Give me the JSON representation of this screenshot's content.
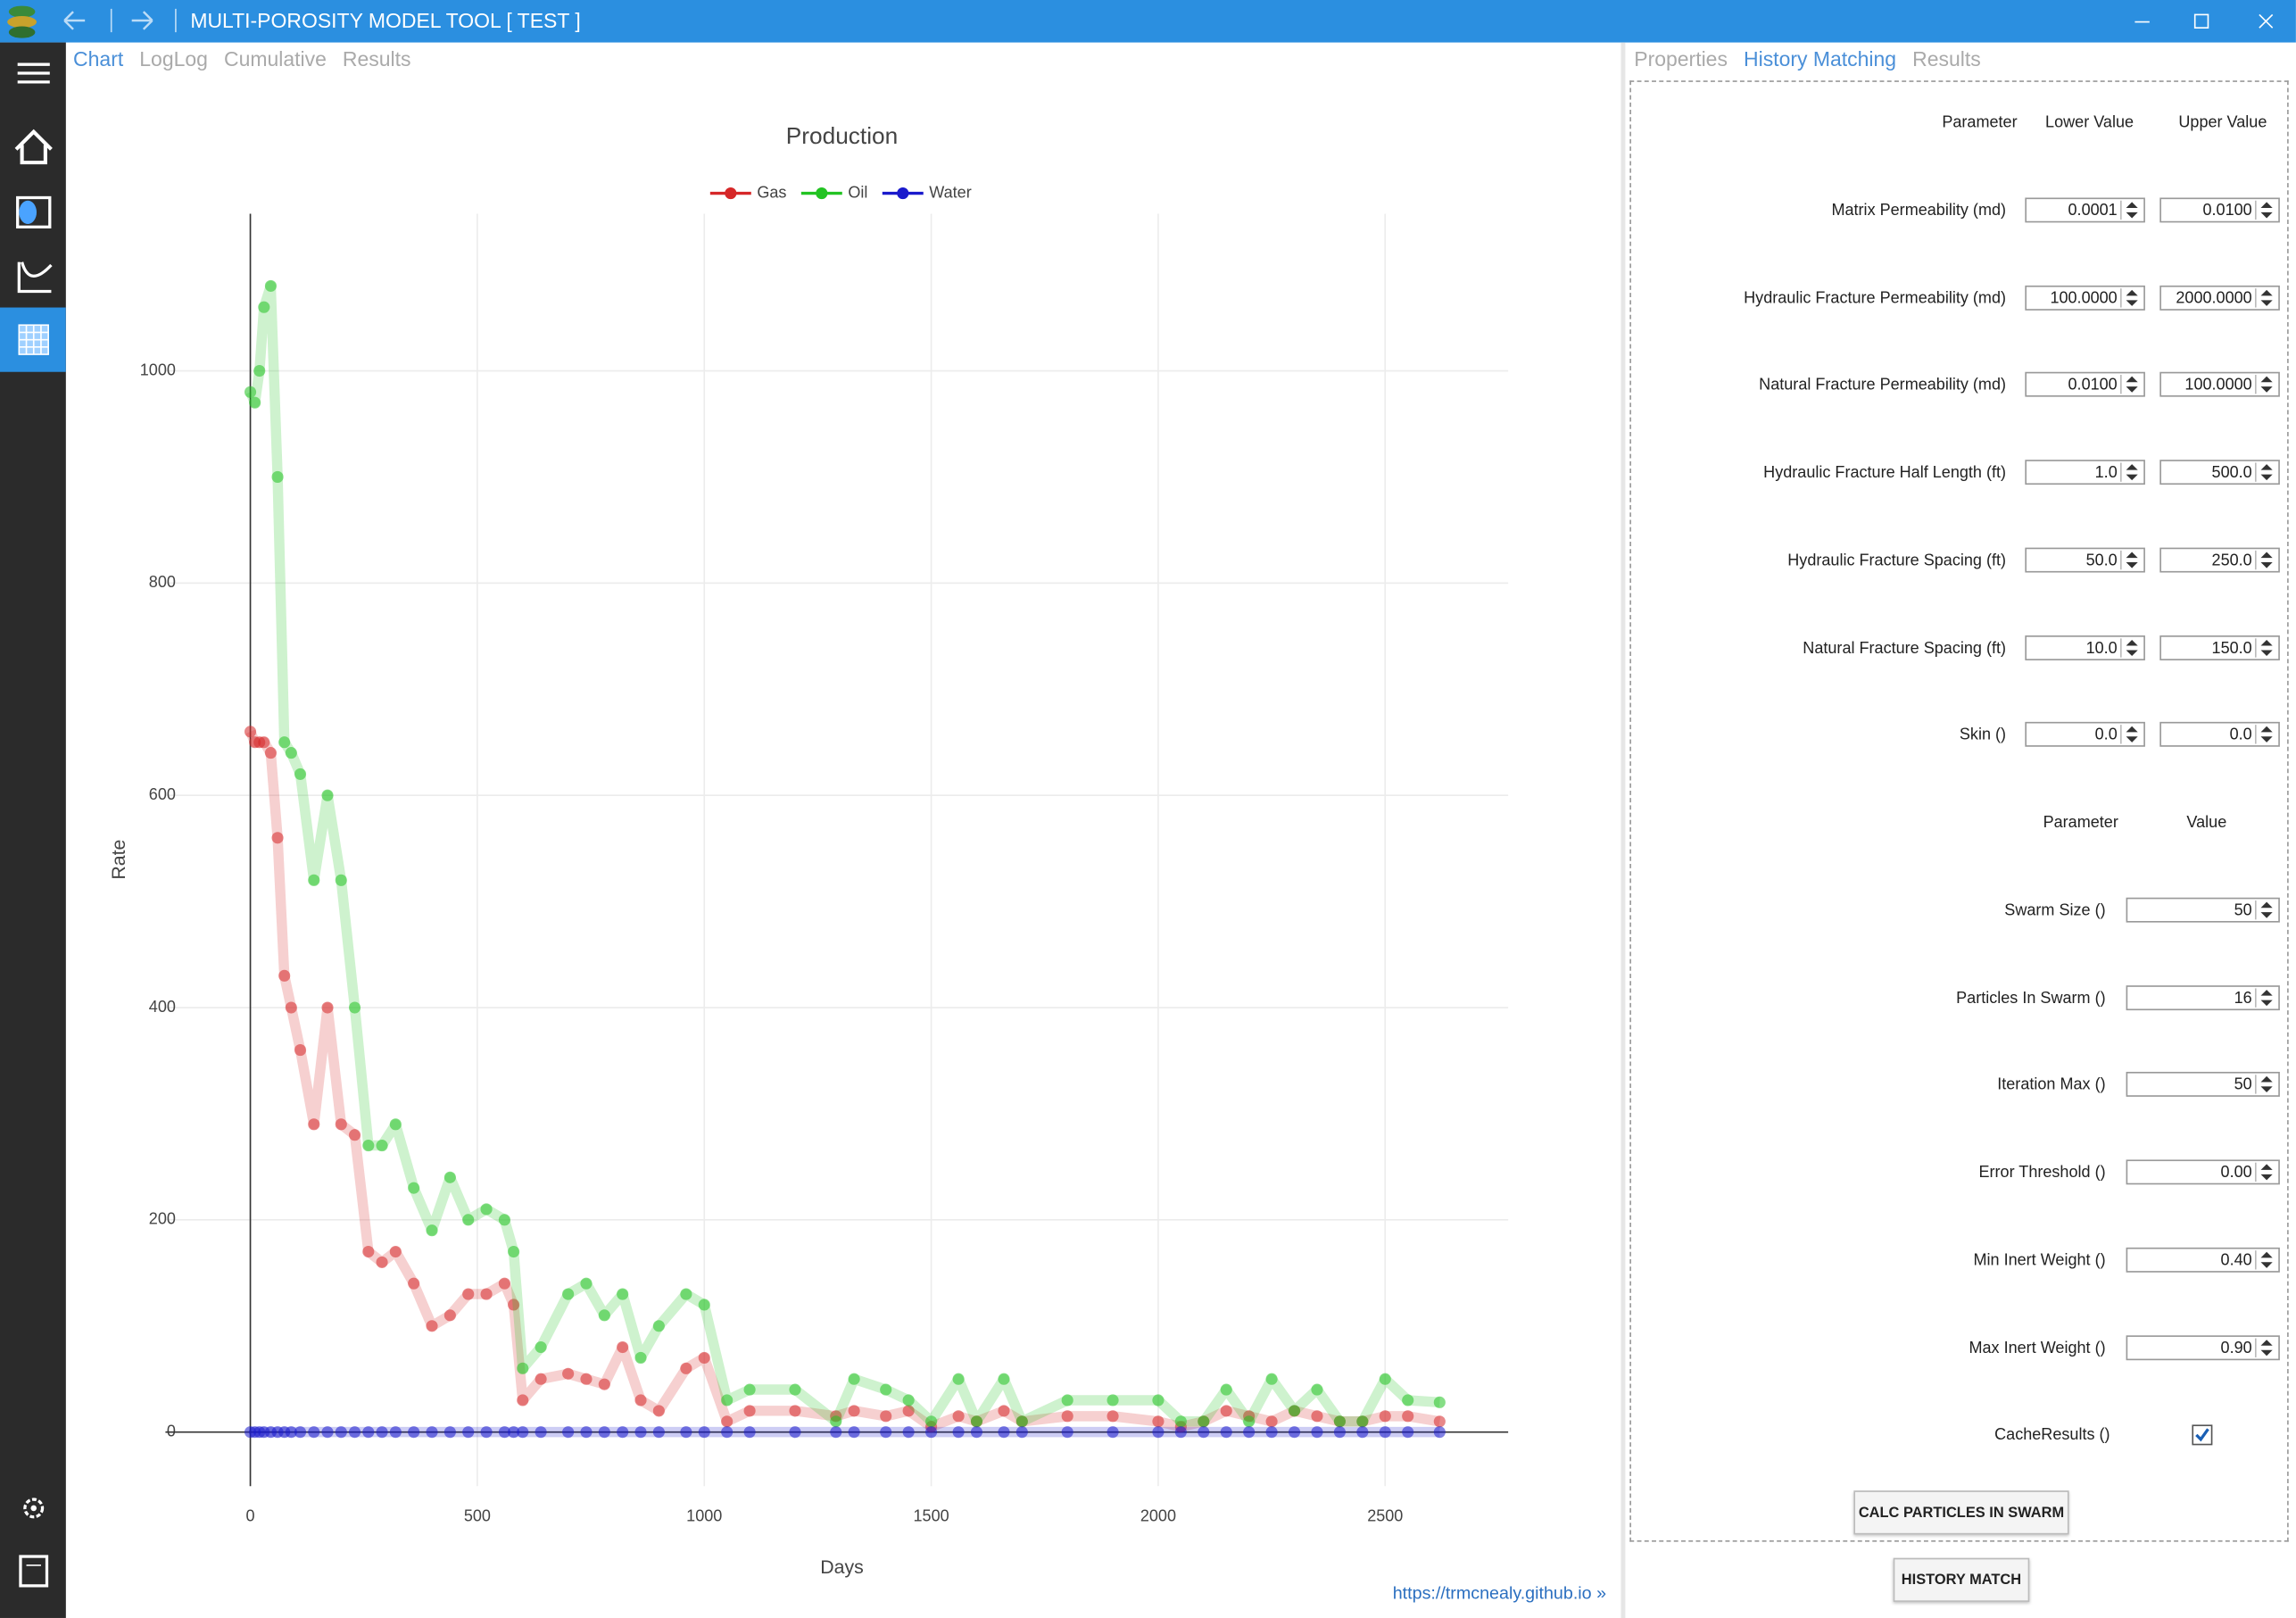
{
  "window": {
    "title": "MULTI-POROSITY MODEL TOOL [ TEST ]"
  },
  "chart_tabs": {
    "items": [
      "Chart",
      "LogLog",
      "Cumulative",
      "Results"
    ],
    "active": 0
  },
  "chart_data": {
    "type": "scatter",
    "title": "Production",
    "x_label": "Days",
    "y_label": "Rate",
    "x": [
      0,
      10,
      20,
      30,
      45,
      60,
      75,
      90,
      110,
      140,
      170,
      200,
      230,
      260,
      290,
      320,
      360,
      400,
      440,
      480,
      520,
      560,
      580,
      600,
      640,
      700,
      740,
      780,
      820,
      860,
      900,
      960,
      1000,
      1050,
      1100,
      1200,
      1290,
      1330,
      1400,
      1450,
      1500,
      1560,
      1600,
      1660,
      1700,
      1800,
      1900,
      2000,
      2050,
      2100,
      2150,
      2200,
      2250,
      2300,
      2350,
      2400,
      2450,
      2500,
      2550,
      2620
    ],
    "series": [
      {
        "name": "Gas",
        "color": "#d62728",
        "values": [
          660,
          650,
          650,
          650,
          640,
          560,
          430,
          400,
          360,
          290,
          400,
          290,
          280,
          170,
          160,
          170,
          140,
          100,
          110,
          130,
          130,
          140,
          120,
          30,
          50,
          55,
          50,
          45,
          80,
          30,
          20,
          60,
          70,
          10,
          20,
          20,
          15,
          20,
          15,
          20,
          5,
          15,
          10,
          20,
          10,
          15,
          15,
          10,
          5,
          10,
          20,
          15,
          10,
          20,
          15,
          10,
          10,
          15,
          15,
          10
        ]
      },
      {
        "name": "Oil",
        "color": "#22c322",
        "values": [
          980,
          970,
          1000,
          1060,
          1080,
          900,
          650,
          640,
          620,
          520,
          600,
          520,
          400,
          270,
          270,
          290,
          230,
          190,
          240,
          200,
          210,
          200,
          170,
          60,
          80,
          130,
          140,
          110,
          130,
          70,
          100,
          130,
          120,
          30,
          40,
          40,
          10,
          50,
          40,
          30,
          10,
          50,
          10,
          50,
          10,
          30,
          30,
          30,
          10,
          10,
          40,
          10,
          50,
          20,
          40,
          10,
          10,
          50,
          30,
          28
        ]
      },
      {
        "name": "Water",
        "color": "#1a1acc",
        "values": [
          0,
          0,
          0,
          0,
          0,
          0,
          0,
          0,
          0,
          0,
          0,
          0,
          0,
          0,
          0,
          0,
          0,
          0,
          0,
          0,
          0,
          0,
          0,
          0,
          0,
          0,
          0,
          0,
          0,
          0,
          0,
          0,
          0,
          0,
          0,
          0,
          0,
          0,
          0,
          0,
          0,
          0,
          0,
          0,
          0,
          0,
          0,
          0,
          0,
          0,
          0,
          0,
          0,
          0,
          0,
          0,
          0,
          0,
          0,
          0
        ]
      }
    ],
    "xlim": [
      -187,
      2771
    ],
    "ylim": [
      -51,
      1148
    ],
    "xticks": [
      0,
      500,
      1000,
      1500,
      2000,
      2500
    ],
    "yticks": [
      0,
      200,
      400,
      600,
      800,
      1000
    ],
    "grid": true,
    "legend": "top"
  },
  "link": "https://trmcnealy.github.io »",
  "panel_tabs": {
    "items": [
      "Properties",
      "History Matching",
      "Results"
    ],
    "active": 1
  },
  "bounds_table": {
    "headers": [
      "Parameter",
      "Lower Value",
      "Upper Value"
    ],
    "rows": [
      [
        "Matrix Permeability (md)",
        "0.0001",
        "0.0100"
      ],
      [
        "Hydraulic Fracture Permeability (md)",
        "100.0000",
        "2000.0000"
      ],
      [
        "Natural Fracture Permeability (md)",
        "0.0100",
        "100.0000"
      ],
      [
        "Hydraulic Fracture Half Length (ft)",
        "1.0",
        "500.0"
      ],
      [
        "Hydraulic Fracture Spacing (ft)",
        "50.0",
        "250.0"
      ],
      [
        "Natural Fracture Spacing (ft)",
        "10.0",
        "150.0"
      ],
      [
        "Skin ()",
        "0.0",
        "0.0"
      ]
    ]
  },
  "settings_table": {
    "headers": [
      "Parameter",
      "Value"
    ],
    "rows": [
      [
        "Swarm Size ()",
        "50"
      ],
      [
        "Particles In Swarm ()",
        "16"
      ],
      [
        "Iteration Max ()",
        "50"
      ],
      [
        "Error Threshold ()",
        "0.00"
      ],
      [
        "Min Inert Weight ()",
        "0.40"
      ],
      [
        "Max Inert Weight ()",
        "0.90"
      ]
    ]
  },
  "cache_results": {
    "label": "CacheResults ()",
    "checked": true
  },
  "buttons": [
    "CALC PARTICLES IN SWARM",
    "HISTORY MATCH"
  ]
}
